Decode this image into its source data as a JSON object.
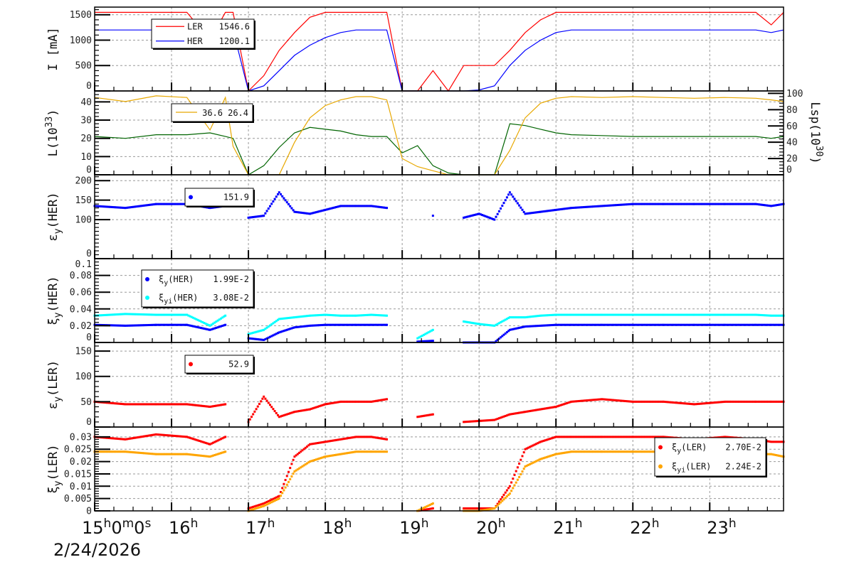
{
  "chart_data": {
    "type": "line",
    "title": "",
    "date_label": "2/24/2026",
    "x_unit": "hour",
    "xlim": [
      15.0,
      23.96
    ],
    "x_ticks": [
      {
        "value": 15,
        "parts": [
          [
            "15",
            "h"
          ],
          [
            "0",
            "m"
          ],
          [
            "0",
            "s"
          ]
        ]
      },
      {
        "value": 16,
        "parts": [
          [
            "16",
            "h"
          ]
        ]
      },
      {
        "value": 17,
        "parts": [
          [
            "17",
            "h"
          ]
        ]
      },
      {
        "value": 18,
        "parts": [
          [
            "18",
            "h"
          ]
        ]
      },
      {
        "value": 19,
        "parts": [
          [
            "19",
            "h"
          ]
        ]
      },
      {
        "value": 20,
        "parts": [
          [
            "20",
            "h"
          ]
        ]
      },
      {
        "value": 21,
        "parts": [
          [
            "21",
            "h"
          ]
        ]
      },
      {
        "value": 22,
        "parts": [
          [
            "22",
            "h"
          ]
        ]
      },
      {
        "value": 23,
        "parts": [
          [
            "23",
            "h"
          ]
        ]
      }
    ],
    "x": [
      15.0,
      15.4,
      15.8,
      16.2,
      16.5,
      16.7,
      16.8,
      17.0,
      17.2,
      17.4,
      17.6,
      17.8,
      18.0,
      18.2,
      18.4,
      18.6,
      18.8,
      19.0,
      19.2,
      19.4,
      19.6,
      19.8,
      20.0,
      20.2,
      20.4,
      20.6,
      20.8,
      21.0,
      21.2,
      21.6,
      22.0,
      22.4,
      22.8,
      23.2,
      23.6,
      23.8,
      23.96
    ],
    "panels": [
      {
        "ylabel": "I [mA]",
        "ylim": [
          0,
          1650
        ],
        "yticks": [
          0,
          500,
          1000,
          1500
        ],
        "ytick_labels": [
          "0",
          "500",
          "1000",
          "1500"
        ],
        "series": [
          {
            "name": "LER",
            "style": "line",
            "color": "#ff0000",
            "legend_value": "1546.6",
            "values": [
              1546,
              1546,
              1546,
              1546,
              1000,
              1546,
              1546,
              0,
              300,
              800,
              1150,
              1450,
              1546,
              1546,
              1546,
              1546,
              1546,
              0,
              0,
              400,
              0,
              500,
              500,
              500,
              800,
              1150,
              1400,
              1546,
              1546,
              1546,
              1546,
              1546,
              1546,
              1546,
              1546,
              1300,
              1546
            ]
          },
          {
            "name": "HER",
            "style": "line",
            "color": "#0000ff",
            "legend_value": "1200.1",
            "values": [
              1200,
              1200,
              1200,
              1200,
              1000,
              1200,
              1200,
              0,
              100,
              400,
              700,
              900,
              1050,
              1150,
              1200,
              1200,
              1200,
              0,
              0,
              0,
              0,
              0,
              20,
              100,
              500,
              800,
              1000,
              1150,
              1200,
              1200,
              1200,
              1200,
              1200,
              1200,
              1200,
              1150,
              1200
            ]
          }
        ]
      },
      {
        "ylabel": "L(10",
        "ylabel_sup": "33",
        "ylabel_end": ")",
        "ylim": [
          0,
          46
        ],
        "yticks": [
          0,
          10,
          20,
          30,
          40
        ],
        "ytick_labels": [
          "0",
          "10",
          "20",
          "30",
          "40"
        ],
        "right_axis": {
          "label": "Lsp(10",
          "label_sup": "30",
          "label_end": ")",
          "ylim": [
            0,
            103
          ],
          "yticks": [
            0,
            20,
            40,
            60,
            80,
            100
          ],
          "ytick_labels": [
            "0",
            "20",
            "40",
            "60",
            "80",
            "100"
          ]
        },
        "legend_values": [
          "36.6",
          "26.4"
        ],
        "series": [
          {
            "name": "L",
            "style": "line",
            "color": "#006400",
            "axis": "left",
            "values": [
              21,
              20,
              22,
              22,
              23,
              21,
              20,
              0,
              5,
              15,
              23,
              26,
              25,
              24,
              22,
              21,
              21,
              12,
              16,
              5,
              1,
              0,
              0,
              0,
              28,
              27,
              25,
              23,
              22,
              21.5,
              21,
              21,
              21,
              21,
              21,
              20,
              21
            ]
          },
          {
            "name": "Lsp",
            "style": "line",
            "color": "#e8a800",
            "axis": "right",
            "values": [
              95,
              90,
              97,
              95,
              55,
              95,
              35,
              0,
              0,
              0,
              40,
              70,
              85,
              92,
              96,
              96,
              92,
              20,
              10,
              5,
              0,
              0,
              0,
              0,
              30,
              70,
              88,
              94,
              96,
              95,
              96,
              95,
              94,
              95,
              94,
              92,
              90
            ]
          }
        ]
      },
      {
        "ylabel": "ε",
        "ylabel_sub": "y",
        "ylabel_end": "(HER)",
        "ylim": [
          0,
          215
        ],
        "yticks": [
          0,
          100,
          150,
          200
        ],
        "ytick_labels": [
          "0",
          "100",
          "150",
          "200"
        ],
        "series": [
          {
            "name": "εy(HER)",
            "style": "dots",
            "color": "#0000ff",
            "legend_value": "151.9",
            "values": [
              135,
              130,
              140,
              140,
              130,
              135,
              null,
              105,
              110,
              170,
              120,
              115,
              125,
              135,
              135,
              135,
              130,
              null,
              null,
              110,
              null,
              105,
              115,
              100,
              170,
              115,
              120,
              125,
              130,
              135,
              140,
              140,
              140,
              140,
              140,
              135,
              140
            ]
          }
        ]
      },
      {
        "ylabel": "ξ",
        "ylabel_sub": "y",
        "ylabel_end": "(HER)",
        "ylim": [
          0,
          0.1
        ],
        "yticks": [
          0,
          0.02,
          0.04,
          0.06,
          0.08,
          0.1
        ],
        "ytick_labels": [
          "0",
          "0.02",
          "0.04",
          "0.06",
          "0.08",
          "0.1"
        ],
        "series": [
          {
            "name": "ξy(HER)",
            "label": "ξ",
            "label_sub": "y",
            "label_end": "(HER)",
            "style": "dots",
            "color": "#0000ff",
            "legend_value": "1.99E-2",
            "values": [
              0.021,
              0.02,
              0.021,
              0.021,
              0.015,
              0.021,
              null,
              0.005,
              0.003,
              0.012,
              0.018,
              0.02,
              0.021,
              0.021,
              0.021,
              0.021,
              0.021,
              null,
              0.001,
              0.002,
              null,
              0,
              0,
              0,
              0.015,
              0.019,
              0.02,
              0.021,
              0.021,
              0.021,
              0.021,
              0.021,
              0.021,
              0.021,
              0.021,
              0.021,
              0.021
            ]
          },
          {
            "name": "ξyi(HER)",
            "label": "ξ",
            "label_sub": "yi",
            "label_end": "(HER)",
            "style": "dots",
            "color": "#00ffff",
            "legend_value": "3.08E-2",
            "values": [
              0.032,
              0.034,
              0.033,
              0.033,
              0.02,
              0.032,
              null,
              0.01,
              0.015,
              0.028,
              0.03,
              0.032,
              0.033,
              0.032,
              0.032,
              0.033,
              0.032,
              null,
              0.005,
              0.015,
              null,
              0.025,
              0.022,
              0.02,
              0.03,
              0.03,
              0.032,
              0.033,
              0.033,
              0.033,
              0.033,
              0.033,
              0.033,
              0.033,
              0.033,
              0.032,
              0.032
            ]
          }
        ]
      },
      {
        "ylabel": "ε",
        "ylabel_sub": "y",
        "ylabel_end": "(LER)",
        "ylim": [
          0,
          167
        ],
        "yticks": [
          0,
          50,
          100,
          150
        ],
        "ytick_labels": [
          "0",
          "50",
          "100",
          "150"
        ],
        "series": [
          {
            "name": "εy(LER)",
            "style": "dots",
            "color": "#ff0000",
            "legend_value": "52.9",
            "values": [
              50,
              45,
              45,
              45,
              40,
              45,
              null,
              10,
              60,
              20,
              30,
              35,
              45,
              50,
              50,
              50,
              55,
              null,
              20,
              25,
              null,
              10,
              12,
              14,
              25,
              30,
              35,
              40,
              50,
              55,
              50,
              50,
              45,
              50,
              50,
              50,
              50
            ]
          }
        ]
      },
      {
        "ylabel": "ξ",
        "ylabel_sub": "y",
        "ylabel_end": "(LER)",
        "ylim": [
          0,
          0.034
        ],
        "yticks": [
          0,
          0.005,
          0.01,
          0.015,
          0.02,
          0.025,
          0.03
        ],
        "ytick_labels": [
          "0",
          "0.005",
          "0.01",
          "0.015",
          "0.02",
          "0.025",
          "0.03"
        ],
        "series": [
          {
            "name": "ξy(LER)",
            "label": "ξ",
            "label_sub": "y",
            "label_end": "(LER)",
            "style": "dots",
            "color": "#ff0000",
            "legend_value": "2.70E-2",
            "values": [
              0.03,
              0.029,
              0.031,
              0.03,
              0.027,
              0.03,
              null,
              0.001,
              0.003,
              0.006,
              0.022,
              0.027,
              0.028,
              0.029,
              0.03,
              0.03,
              0.029,
              null,
              0,
              0.001,
              null,
              0.001,
              0.001,
              0.001,
              0.01,
              0.025,
              0.028,
              0.03,
              0.03,
              0.03,
              0.03,
              0.03,
              0.029,
              0.03,
              0.029,
              0.028,
              0.028
            ]
          },
          {
            "name": "ξyi(LER)",
            "label": "ξ",
            "label_sub": "yi",
            "label_end": "(LER)",
            "style": "dots",
            "color": "#ffa500",
            "legend_value": "2.24E-2",
            "values": [
              0.024,
              0.024,
              0.023,
              0.023,
              0.022,
              0.024,
              null,
              0,
              0.002,
              0.005,
              0.016,
              0.02,
              0.022,
              0.023,
              0.024,
              0.024,
              0.024,
              null,
              0,
              0.003,
              null,
              0,
              0,
              0.001,
              0.007,
              0.018,
              0.021,
              0.023,
              0.024,
              0.024,
              0.024,
              0.024,
              0.023,
              0.023,
              0.023,
              0.023,
              0.022
            ]
          }
        ]
      }
    ]
  }
}
